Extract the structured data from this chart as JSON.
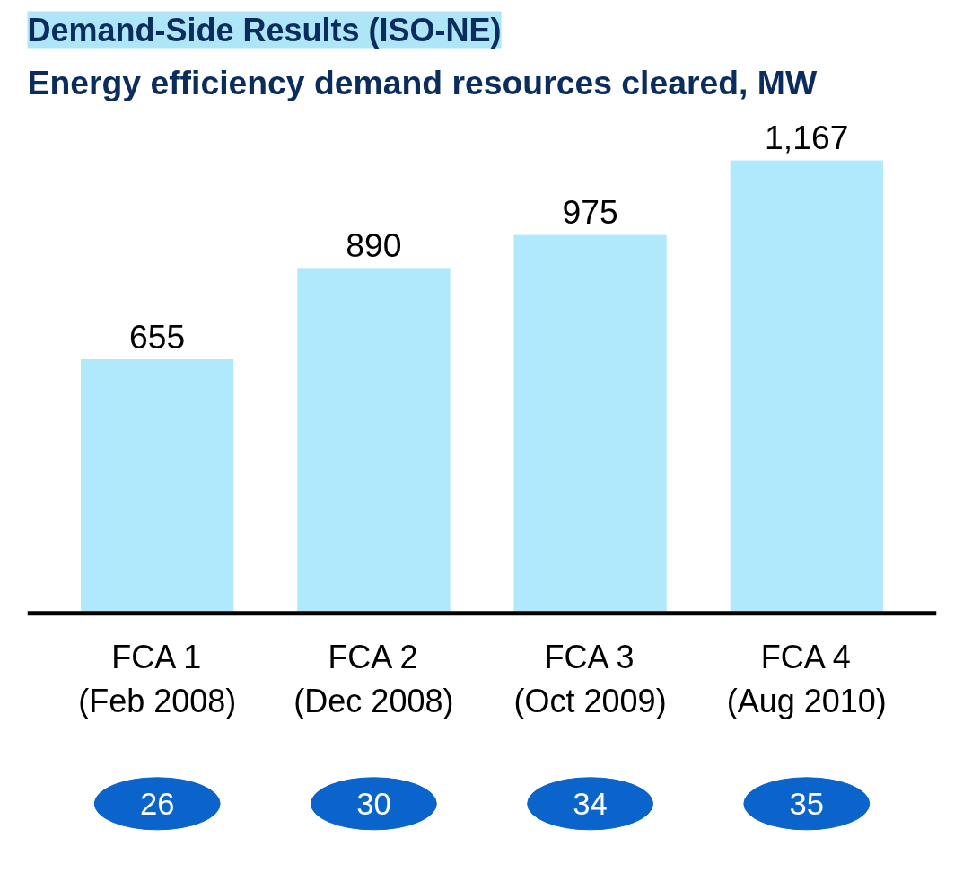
{
  "chart_data": {
    "type": "bar",
    "title": "Demand-Side Results (ISO-NE)",
    "subtitle": "Energy efficiency demand resources cleared, MW",
    "categories": [
      "FCA 1\n(Feb 2008)",
      "FCA 2\n(Dec 2008)",
      "FCA 3\n(Oct 2009)",
      "FCA 4\n(Aug 2010)"
    ],
    "values": [
      655,
      890,
      975,
      1167
    ],
    "color": "#b0e8fc",
    "data_labels": true,
    "value_labels": [
      "655",
      "890",
      "975",
      "1,167"
    ],
    "annotations": [
      "26",
      "30",
      "34",
      "35"
    ],
    "grid": false
  }
}
